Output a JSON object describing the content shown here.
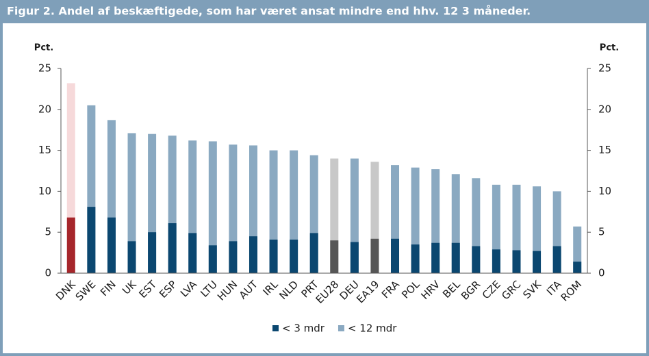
{
  "chart_data": {
    "type": "overlapping_bar",
    "title": "Figur 2. Andel af beskæftigede, som har været ansat mindre end hhv. 12  3 måneder.",
    "y_label": "Pct.",
    "y2_label": "Pct.",
    "categories": [
      "DNK",
      "SWE",
      "FIN",
      "UK",
      "EST",
      "ESP",
      "LVA",
      "LTU",
      "HUN",
      "AUT",
      "IRL",
      "NLD",
      "PRT",
      "EU28",
      "DEU",
      "EA19",
      "FRA",
      "POL",
      "HRV",
      "BEL",
      "BGR",
      "CZE",
      "GRC",
      "SVK",
      "ITA",
      "ROM"
    ],
    "series": [
      {
        "name": "< 12 mdr",
        "color": "#8aa9c1",
        "colors": [
          "#f6d9da",
          "#8aa9c1",
          "#8aa9c1",
          "#8aa9c1",
          "#8aa9c1",
          "#8aa9c1",
          "#8aa9c1",
          "#8aa9c1",
          "#8aa9c1",
          "#8aa9c1",
          "#8aa9c1",
          "#8aa9c1",
          "#8aa9c1",
          "#c8c8c8",
          "#8aa9c1",
          "#c8c8c8",
          "#8aa9c1",
          "#8aa9c1",
          "#8aa9c1",
          "#8aa9c1",
          "#8aa9c1",
          "#8aa9c1",
          "#8aa9c1",
          "#8aa9c1",
          "#8aa9c1",
          "#8aa9c1"
        ],
        "values": [
          23.2,
          20.5,
          18.7,
          17.1,
          17.0,
          16.8,
          16.2,
          16.1,
          15.7,
          15.6,
          15.0,
          15.0,
          14.4,
          14.0,
          14.0,
          13.6,
          13.2,
          12.9,
          12.7,
          12.1,
          11.6,
          10.8,
          10.8,
          10.6,
          10.0,
          5.7
        ]
      },
      {
        "name": "< 3 mdr",
        "color": "#0b4770",
        "colors": [
          "#a6262b",
          "#0b4770",
          "#0b4770",
          "#0b4770",
          "#0b4770",
          "#0b4770",
          "#0b4770",
          "#0b4770",
          "#0b4770",
          "#0b4770",
          "#0b4770",
          "#0b4770",
          "#0b4770",
          "#565656",
          "#0b4770",
          "#565656",
          "#0b4770",
          "#0b4770",
          "#0b4770",
          "#0b4770",
          "#0b4770",
          "#0b4770",
          "#0b4770",
          "#0b4770",
          "#0b4770",
          "#0b4770"
        ],
        "values": [
          6.8,
          8.1,
          6.8,
          3.9,
          5.0,
          6.1,
          4.9,
          3.4,
          3.9,
          4.5,
          4.1,
          4.1,
          4.9,
          4.0,
          3.8,
          4.2,
          4.2,
          3.5,
          3.7,
          3.7,
          3.3,
          2.9,
          2.8,
          2.7,
          3.3,
          1.4
        ]
      }
    ],
    "legend_order": [
      1,
      0
    ],
    "ylim": [
      0,
      25
    ],
    "yticks": [
      0,
      5,
      10,
      15,
      20,
      25
    ],
    "y2lim": [
      0,
      25
    ],
    "y2ticks": [
      0,
      5,
      10,
      15,
      20,
      25
    ]
  }
}
